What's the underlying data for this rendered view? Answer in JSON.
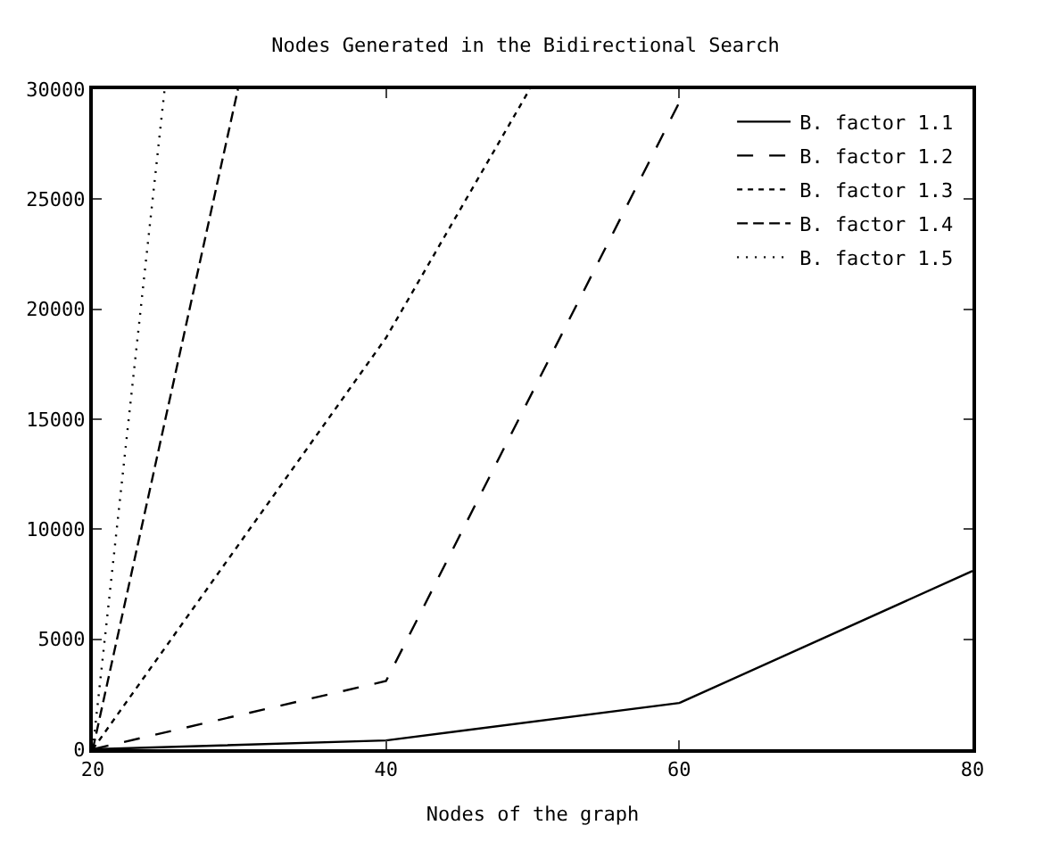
{
  "chart_data": {
    "type": "line",
    "title": "Nodes Generated in the Bidirectional Search",
    "xlabel": "Nodes of the graph",
    "xlim": [
      20,
      80
    ],
    "xticks": [
      20,
      40,
      60,
      80
    ],
    "ylim": [
      0,
      30000
    ],
    "yticks": [
      0,
      5000,
      10000,
      15000,
      20000,
      25000,
      30000
    ],
    "legend": "top right",
    "marker": "none",
    "series": [
      {
        "name": "B. factor 1.1",
        "color": "#000000",
        "line_style": "solid",
        "x": [
          20,
          40,
          60,
          80
        ],
        "values": [
          0,
          400,
          2100,
          8100
        ]
      },
      {
        "name": "B. factor 1.2",
        "color": "#000000",
        "line_style": "dashed",
        "x": [
          20,
          40,
          60
        ],
        "values": [
          0,
          3100,
          29400
        ]
      },
      {
        "name": "B. factor 1.3",
        "color": "#000000",
        "line_style": "dotted",
        "x": [
          20,
          40,
          49.8
        ],
        "values": [
          0,
          18700,
          30000
        ]
      },
      {
        "name": "B. factor 1.4",
        "color": "#000000",
        "line_style": "dashed",
        "x": [
          20,
          29.9
        ],
        "values": [
          0,
          30000
        ]
      },
      {
        "name": "B. factor 1.5",
        "color": "#000000",
        "line_style": "dotted",
        "x": [
          20,
          24.9
        ],
        "values": [
          0,
          30000
        ]
      }
    ]
  }
}
